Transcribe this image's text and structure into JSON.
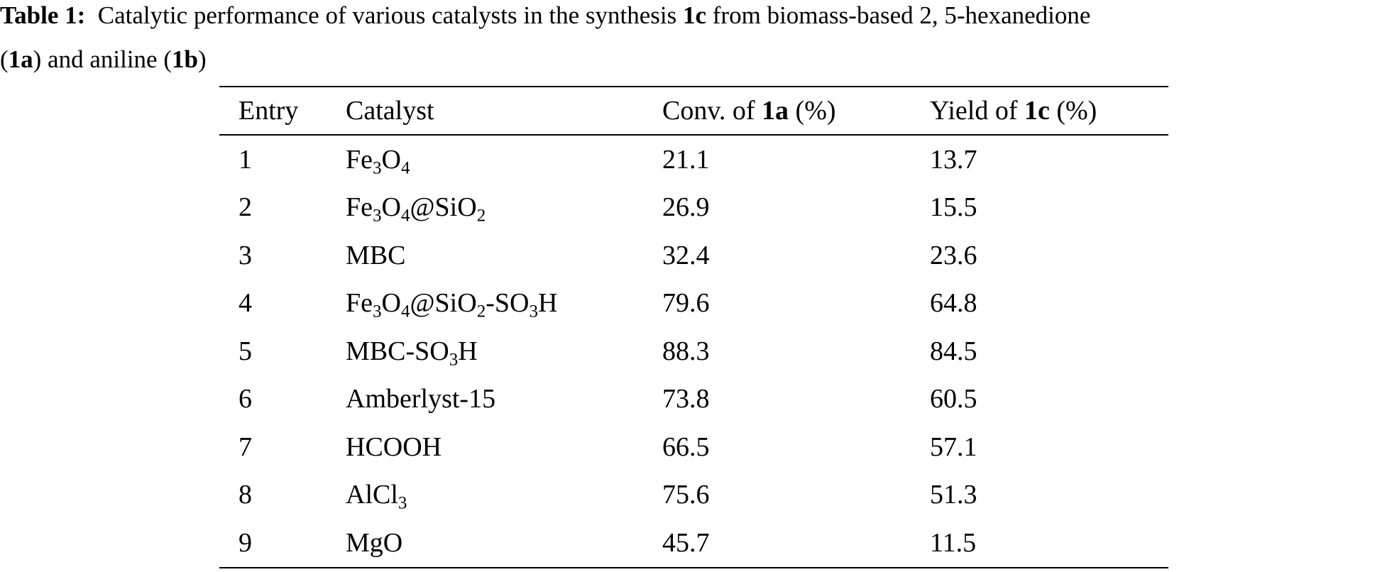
{
  "caption": {
    "label": "Table 1:",
    "text_1": "Catalytic performance of various catalysts in the synthesis ",
    "bold_1": "1c",
    "text_2": " from biomass-based 2, 5-hexanedione",
    "line2_open": "(",
    "bold_2": "1a",
    "text_3": ") and aniline (",
    "bold_3": "1b",
    "text_4": ")"
  },
  "table": {
    "headers": {
      "entry": "Entry",
      "catalyst": "Catalyst",
      "conv_prefix": "Conv. of ",
      "conv_bold": "1a",
      "conv_suffix": " (%)",
      "yield_prefix": "Yield of ",
      "yield_bold": "1c",
      "yield_suffix": " (%)"
    },
    "rows": [
      {
        "entry": "1",
        "catalyst": [
          {
            "t": "Fe"
          },
          {
            "s": "3"
          },
          {
            "t": "O"
          },
          {
            "s": "4"
          }
        ],
        "conv": "21.1",
        "yield": "13.7"
      },
      {
        "entry": "2",
        "catalyst": [
          {
            "t": "Fe"
          },
          {
            "s": "3"
          },
          {
            "t": "O"
          },
          {
            "s": "4"
          },
          {
            "t": "@SiO"
          },
          {
            "s": "2"
          }
        ],
        "conv": "26.9",
        "yield": "15.5"
      },
      {
        "entry": "3",
        "catalyst": [
          {
            "t": "MBC"
          }
        ],
        "conv": "32.4",
        "yield": "23.6"
      },
      {
        "entry": "4",
        "catalyst": [
          {
            "t": "Fe"
          },
          {
            "s": "3"
          },
          {
            "t": "O"
          },
          {
            "s": "4"
          },
          {
            "t": "@SiO"
          },
          {
            "s": "2"
          },
          {
            "t": "-SO"
          },
          {
            "s": "3"
          },
          {
            "t": "H"
          }
        ],
        "conv": "79.6",
        "yield": "64.8"
      },
      {
        "entry": "5",
        "catalyst": [
          {
            "t": "MBC-SO"
          },
          {
            "s": "3"
          },
          {
            "t": "H"
          }
        ],
        "conv": "88.3",
        "yield": "84.5"
      },
      {
        "entry": "6",
        "catalyst": [
          {
            "t": "Amberlyst-15"
          }
        ],
        "conv": "73.8",
        "yield": "60.5"
      },
      {
        "entry": "7",
        "catalyst": [
          {
            "t": "HCOOH"
          }
        ],
        "conv": "66.5",
        "yield": "57.1"
      },
      {
        "entry": "8",
        "catalyst": [
          {
            "t": "AlCl"
          },
          {
            "s": "3"
          }
        ],
        "conv": "75.6",
        "yield": "51.3"
      },
      {
        "entry": "9",
        "catalyst": [
          {
            "t": "MgO"
          }
        ],
        "conv": "45.7",
        "yield": "11.5"
      }
    ]
  }
}
